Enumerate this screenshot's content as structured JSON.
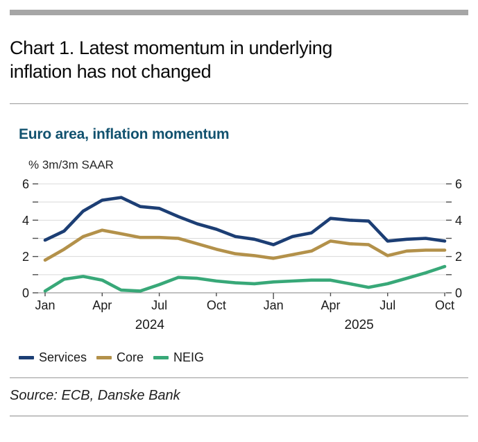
{
  "page": {
    "title_line1": "Chart 1. Latest momentum in underlying",
    "title_line2": "inflation has not changed",
    "source": "Source: ECB, Danske Bank"
  },
  "chart": {
    "title": "Euro area, inflation momentum",
    "unit_label": "% 3m/3m SAAR"
  },
  "chart_data": {
    "type": "line",
    "title": "Euro area, inflation momentum",
    "ylabel": "% 3m/3m SAAR",
    "ylim": [
      0,
      6
    ],
    "y_major_ticks": [
      0,
      2,
      4,
      6
    ],
    "y_minor_ticks": [
      1,
      3,
      5
    ],
    "y_axis_sides": "both",
    "grid": true,
    "legend_position": "bottom",
    "x": [
      "Jan 2024",
      "Feb 2024",
      "Mar 2024",
      "Apr 2024",
      "May 2024",
      "Jun 2024",
      "Jul 2024",
      "Aug 2024",
      "Sep 2024",
      "Oct 2024",
      "Nov 2024",
      "Dec 2024",
      "Jan 2025",
      "Feb 2025",
      "Mar 2025",
      "Apr 2025",
      "May 2025",
      "Jun 2025",
      "Jul 2025",
      "Aug 2025",
      "Sep 2025",
      "Oct 2025"
    ],
    "x_tick_labels": [
      "Jan",
      "Apr",
      "Jul",
      "Oct",
      "Jan",
      "Apr",
      "Jul",
      "Oct"
    ],
    "x_tick_month_index": [
      0,
      3,
      6,
      9,
      12,
      15,
      18,
      21
    ],
    "year_labels": [
      {
        "label": "2024",
        "center_month_index": 5.5
      },
      {
        "label": "2025",
        "center_month_index": 16.5
      }
    ],
    "series": [
      {
        "name": "Services",
        "color": "#1c3e74",
        "values": [
          2.9,
          3.4,
          4.5,
          5.1,
          5.25,
          4.75,
          4.65,
          4.2,
          3.8,
          3.5,
          3.1,
          2.95,
          2.65,
          3.1,
          3.3,
          4.1,
          4.0,
          3.95,
          2.85,
          2.95,
          3.0,
          2.85
        ]
      },
      {
        "name": "Core",
        "color": "#b3914a",
        "values": [
          1.8,
          2.4,
          3.1,
          3.45,
          3.25,
          3.05,
          3.05,
          3.0,
          2.7,
          2.4,
          2.15,
          2.05,
          1.9,
          2.1,
          2.3,
          2.85,
          2.7,
          2.65,
          2.05,
          2.3,
          2.35,
          2.35
        ]
      },
      {
        "name": "NEIG",
        "color": "#38a878",
        "values": [
          0.1,
          0.75,
          0.9,
          0.7,
          0.15,
          0.1,
          0.45,
          0.85,
          0.8,
          0.65,
          0.55,
          0.5,
          0.6,
          0.65,
          0.7,
          0.7,
          0.5,
          0.3,
          0.5,
          0.8,
          1.1,
          1.45
        ]
      }
    ]
  }
}
